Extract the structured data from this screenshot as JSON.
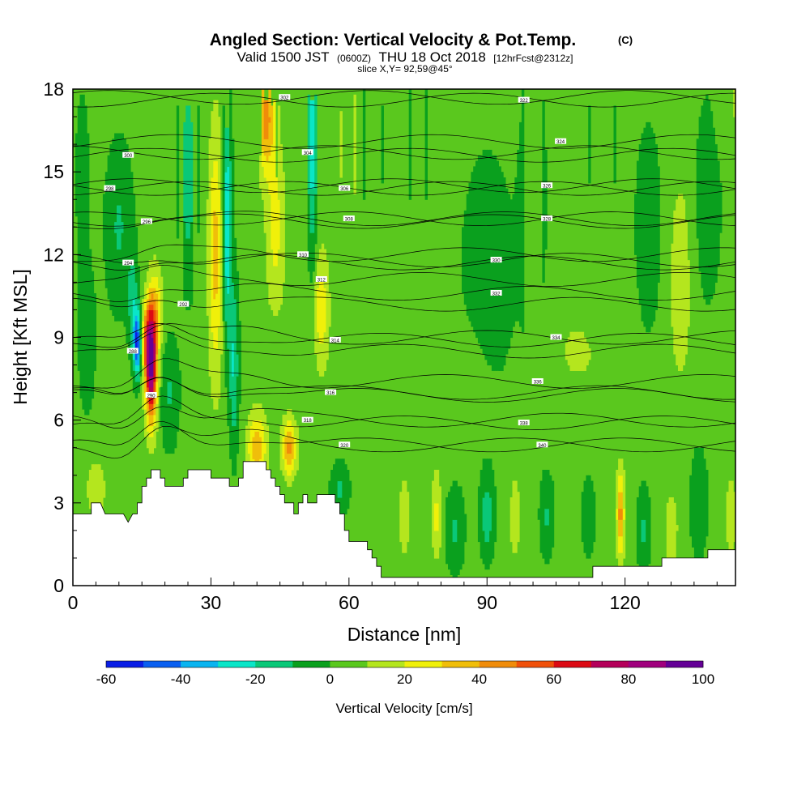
{
  "chart_data": {
    "type": "heatmap",
    "title": "Angled Section: Vertical Velocity & Pot.Temp.",
    "title_units": "(C)",
    "subtitle": {
      "valid": "Valid 1500 JST",
      "utc": "(0600Z)",
      "date": "THU 18 Oct 2018",
      "forecast": "[12hrFcst@2312z]"
    },
    "slice_label": "slice X,Y= 92,59@45°",
    "xlabel": "Distance [nm]",
    "ylabel": "Height [Kft MSL]",
    "xlim": [
      0,
      144
    ],
    "ylim": [
      0,
      18
    ],
    "x_ticks": [
      "0",
      "30",
      "60",
      "90",
      "120"
    ],
    "y_ticks": [
      "0",
      "3",
      "6",
      "9",
      "12",
      "15",
      "18"
    ],
    "colorbar": {
      "label": "Vertical Velocity [cm/s]",
      "tick_labels": [
        "-60",
        "-40",
        "-20",
        "0",
        "20",
        "40",
        "60",
        "80",
        "100"
      ],
      "min": -60,
      "max": 100,
      "step": 10,
      "colors": [
        "#0a1ee6",
        "#0a5ff0",
        "#0ab4f0",
        "#0ae6c8",
        "#0ac878",
        "#0aa01e",
        "#5ac81e",
        "#b4e61e",
        "#f0f00a",
        "#f0be0a",
        "#f08c0a",
        "#f0500a",
        "#dc0a14",
        "#b4005a",
        "#a0007d",
        "#640096"
      ]
    },
    "terrain_kft": [
      [
        0,
        2.6
      ],
      [
        4,
        2.6
      ],
      [
        4,
        3.0
      ],
      [
        6,
        3.0
      ],
      [
        7,
        2.6
      ],
      [
        9,
        2.6
      ],
      [
        10,
        2.6
      ],
      [
        11,
        2.6
      ],
      [
        12,
        2.3
      ],
      [
        13,
        2.6
      ],
      [
        14,
        2.6
      ],
      [
        14,
        3.0
      ],
      [
        15,
        3.0
      ],
      [
        15,
        3.6
      ],
      [
        16,
        3.6
      ],
      [
        16,
        3.9
      ],
      [
        17,
        3.9
      ],
      [
        17,
        4.2
      ],
      [
        18,
        4.2
      ],
      [
        19,
        4.2
      ],
      [
        19,
        3.9
      ],
      [
        20,
        3.9
      ],
      [
        20,
        3.6
      ],
      [
        22,
        3.6
      ],
      [
        24,
        3.6
      ],
      [
        24,
        3.9
      ],
      [
        25,
        3.9
      ],
      [
        25,
        4.2
      ],
      [
        29,
        4.2
      ],
      [
        30,
        4.2
      ],
      [
        30,
        3.9
      ],
      [
        34,
        3.9
      ],
      [
        34,
        3.6
      ],
      [
        36,
        3.6
      ],
      [
        36,
        3.9
      ],
      [
        37,
        3.9
      ],
      [
        37,
        4.5
      ],
      [
        41,
        4.5
      ],
      [
        42,
        4.5
      ],
      [
        42,
        4.2
      ],
      [
        43,
        4.2
      ],
      [
        43,
        3.9
      ],
      [
        44,
        3.9
      ],
      [
        44,
        3.6
      ],
      [
        45,
        3.6
      ],
      [
        45,
        3.3
      ],
      [
        46,
        3.3
      ],
      [
        46,
        3.0
      ],
      [
        48,
        3.0
      ],
      [
        48,
        2.6
      ],
      [
        49,
        2.6
      ],
      [
        49,
        3.0
      ],
      [
        50,
        3.0
      ],
      [
        50,
        3.3
      ],
      [
        51,
        3.3
      ],
      [
        51,
        3.0
      ],
      [
        53,
        3.0
      ],
      [
        53,
        3.3
      ],
      [
        56,
        3.3
      ],
      [
        57,
        3.3
      ],
      [
        57,
        3.0
      ],
      [
        58,
        3.0
      ],
      [
        58,
        2.6
      ],
      [
        59,
        2.6
      ],
      [
        59,
        2.0
      ],
      [
        60,
        2.0
      ],
      [
        60,
        1.6
      ],
      [
        63,
        1.6
      ],
      [
        64,
        1.6
      ],
      [
        64,
        1.3
      ],
      [
        65,
        1.3
      ],
      [
        65,
        1.0
      ],
      [
        66,
        1.0
      ],
      [
        66,
        0.7
      ],
      [
        67,
        0.7
      ],
      [
        67,
        0.3
      ],
      [
        80,
        0.3
      ],
      [
        113,
        0.3
      ],
      [
        113,
        0.7
      ],
      [
        127,
        0.7
      ],
      [
        128,
        0.7
      ],
      [
        128,
        1.0
      ],
      [
        138,
        1.0
      ],
      [
        138,
        1.3
      ],
      [
        144,
        1.3
      ]
    ],
    "theta_contour_labels": [
      {
        "label": "288",
        "x": 13,
        "y": 8.5
      },
      {
        "label": "290",
        "x": 17,
        "y": 6.9
      },
      {
        "label": "292",
        "x": 24,
        "y": 10.2
      },
      {
        "label": "294",
        "x": 12,
        "y": 11.7
      },
      {
        "label": "296",
        "x": 16,
        "y": 13.2
      },
      {
        "label": "298",
        "x": 8,
        "y": 14.4
      },
      {
        "label": "300",
        "x": 12,
        "y": 15.6
      },
      {
        "label": "302",
        "x": 46,
        "y": 17.7
      },
      {
        "label": "304",
        "x": 51,
        "y": 15.7
      },
      {
        "label": "306",
        "x": 59,
        "y": 14.4
      },
      {
        "label": "308",
        "x": 60,
        "y": 13.3
      },
      {
        "label": "310",
        "x": 50,
        "y": 12.0
      },
      {
        "label": "312",
        "x": 54,
        "y": 11.1
      },
      {
        "label": "314",
        "x": 57,
        "y": 8.9
      },
      {
        "label": "316",
        "x": 56,
        "y": 7.0
      },
      {
        "label": "318",
        "x": 51,
        "y": 6.0
      },
      {
        "label": "320",
        "x": 59,
        "y": 5.1
      },
      {
        "label": "322",
        "x": 98,
        "y": 17.6
      },
      {
        "label": "324",
        "x": 106,
        "y": 16.1
      },
      {
        "label": "326",
        "x": 103,
        "y": 14.5
      },
      {
        "label": "328",
        "x": 103,
        "y": 13.3
      },
      {
        "label": "330",
        "x": 92,
        "y": 11.8
      },
      {
        "label": "332",
        "x": 92,
        "y": 10.6
      },
      {
        "label": "334",
        "x": 105,
        "y": 9.0
      },
      {
        "label": "336",
        "x": 101,
        "y": 7.4
      },
      {
        "label": "338",
        "x": 98,
        "y": 5.9
      },
      {
        "label": "340",
        "x": 102,
        "y": 5.1
      }
    ]
  }
}
